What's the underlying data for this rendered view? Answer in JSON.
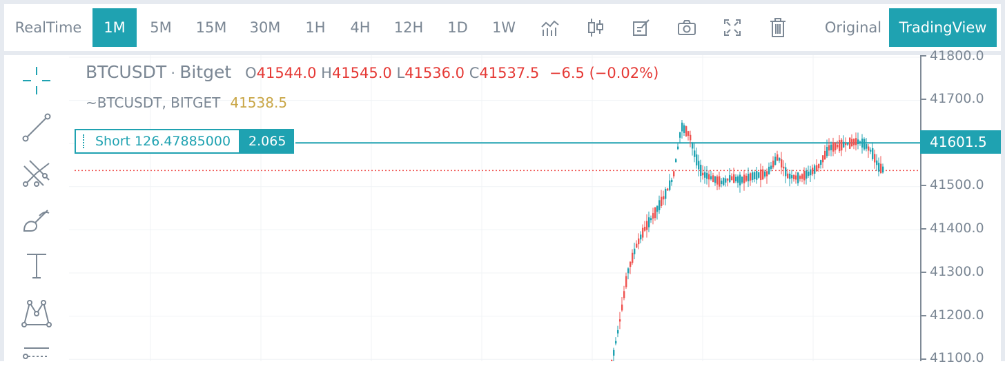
{
  "toolbar": {
    "items": [
      {
        "label": "RealTime",
        "active": false
      },
      {
        "label": "1M",
        "active": true
      },
      {
        "label": "5M",
        "active": false
      },
      {
        "label": "15M",
        "active": false
      },
      {
        "label": "30M",
        "active": false
      },
      {
        "label": "1H",
        "active": false
      },
      {
        "label": "4H",
        "active": false
      },
      {
        "label": "12H",
        "active": false
      },
      {
        "label": "1D",
        "active": false
      },
      {
        "label": "1W",
        "active": false
      }
    ],
    "icons": [
      "indicators-icon",
      "candle-style-icon",
      "drawing-edit-icon",
      "screenshot-camera-icon",
      "fullscreen-icon",
      "trash-icon"
    ],
    "original_label": "Original",
    "tradingview_label": "TradingView"
  },
  "drawing_tools": [
    "crosshair-icon",
    "trend-line-icon",
    "pitchfork-icon",
    "brush-icon",
    "text-tool-icon",
    "pattern-icon",
    "fib-tool-icon"
  ],
  "legend": {
    "symbol": "BTCUSDT",
    "separator": " · ",
    "exchange": "Bitget",
    "o_label": "O",
    "o_value": "41544.0",
    "h_label": "H",
    "h_value": "41545.0",
    "l_label": "L",
    "l_value": "41536.0",
    "c_label": "C",
    "c_value": "41537.5",
    "change": "−6.5 (−0.02%)",
    "index_symbol": "~BTCUSDT, BITGET",
    "index_value": "41538.5"
  },
  "order_line": {
    "label": "Short 126.47885000",
    "quantity": "2.065",
    "price": 41601.5
  },
  "price_axis": {
    "ticks": [
      "41800.0",
      "41700.0",
      "41600.0",
      "41500.0",
      "41400.0",
      "41300.0",
      "41200.0",
      "41100.0"
    ],
    "tag_label": "41601.5",
    "last_price": 41537.5
  },
  "colors": {
    "accent": "#1fa2b1",
    "up": "#1fa2b1",
    "down": "#ef5350",
    "text": "#7b8794"
  }
}
